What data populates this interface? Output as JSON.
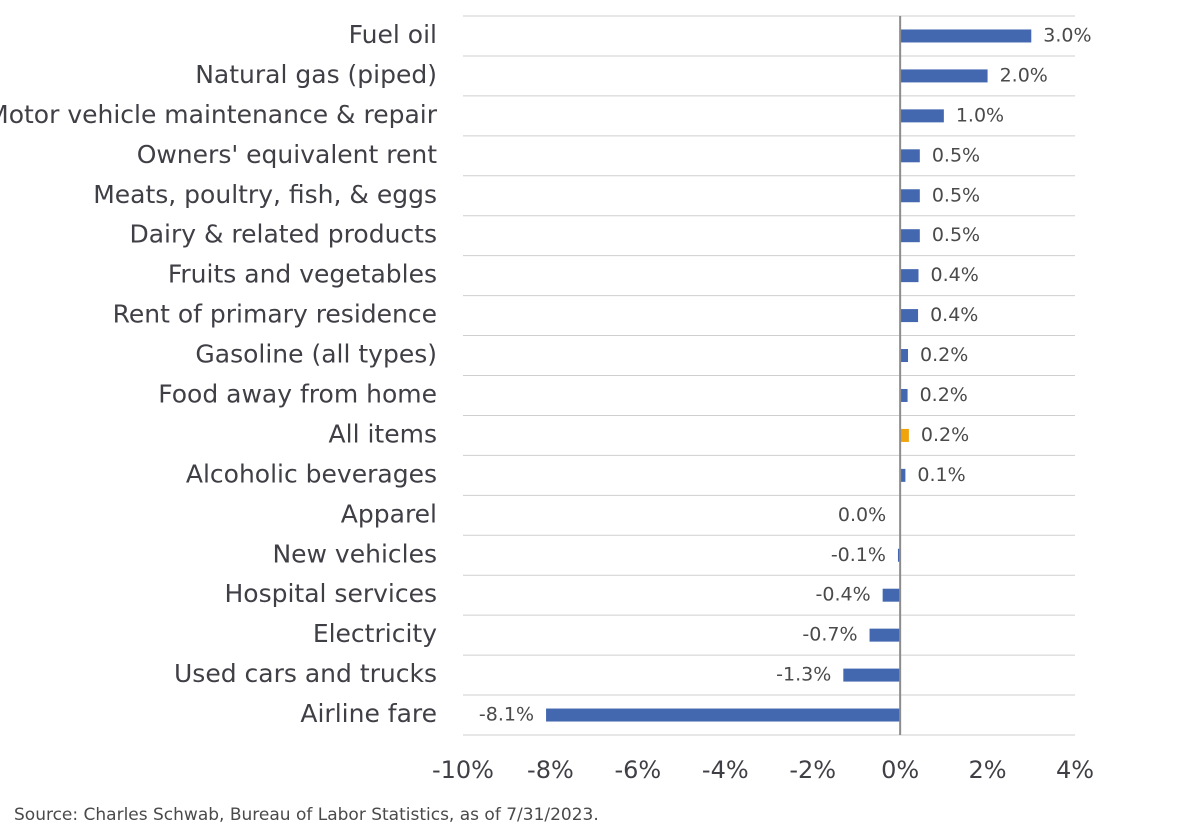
{
  "chart_data": {
    "type": "bar",
    "orientation": "horizontal",
    "categories": [
      "Fuel oil",
      "Natural gas (piped)",
      "Motor vehicle maintenance & repair",
      "Owners' equivalent rent",
      "Meats, poultry, fish, & eggs",
      "Dairy & related products",
      "Fruits and vegetables",
      "Rent of primary residence",
      "Gasoline (all types)",
      "Food away from home",
      "All items",
      "Alcoholic beverages",
      "Apparel",
      "New vehicles",
      "Hospital services",
      "Electricity",
      "Used cars and trucks",
      "Airline fare"
    ],
    "values": [
      3.0,
      2.0,
      1.0,
      0.45,
      0.45,
      0.45,
      0.42,
      0.41,
      0.18,
      0.17,
      0.2,
      0.12,
      0.0,
      -0.05,
      -0.4,
      -0.7,
      -1.3,
      -8.1
    ],
    "value_labels": [
      "3.0%",
      "2.0%",
      "1.0%",
      "0.5%",
      "0.5%",
      "0.5%",
      "0.4%",
      "0.4%",
      "0.2%",
      "0.2%",
      "0.2%",
      "0.1%",
      "0.0%",
      "-0.1%",
      "-0.4%",
      "-0.7%",
      "-1.3%",
      "-8.1%"
    ],
    "highlight_category": "All items",
    "colors": {
      "bar": "#4468b0",
      "highlight": "#f0a30a",
      "grid": "#cfcfcf",
      "axis": "#8c8c8c"
    },
    "xlim": [
      -10,
      4
    ],
    "xticks": [
      -10,
      -8,
      -6,
      -4,
      -2,
      0,
      2,
      4
    ],
    "xtick_labels": [
      "-10%",
      "-8%",
      "-6%",
      "-4%",
      "-2%",
      "0%",
      "2%",
      "4%"
    ],
    "grid": "horizontal",
    "legend": "none",
    "title": "",
    "xlabel": "",
    "ylabel": ""
  },
  "source_note": "Source: Charles Schwab, Bureau of Labor Statistics, as of 7/31/2023."
}
